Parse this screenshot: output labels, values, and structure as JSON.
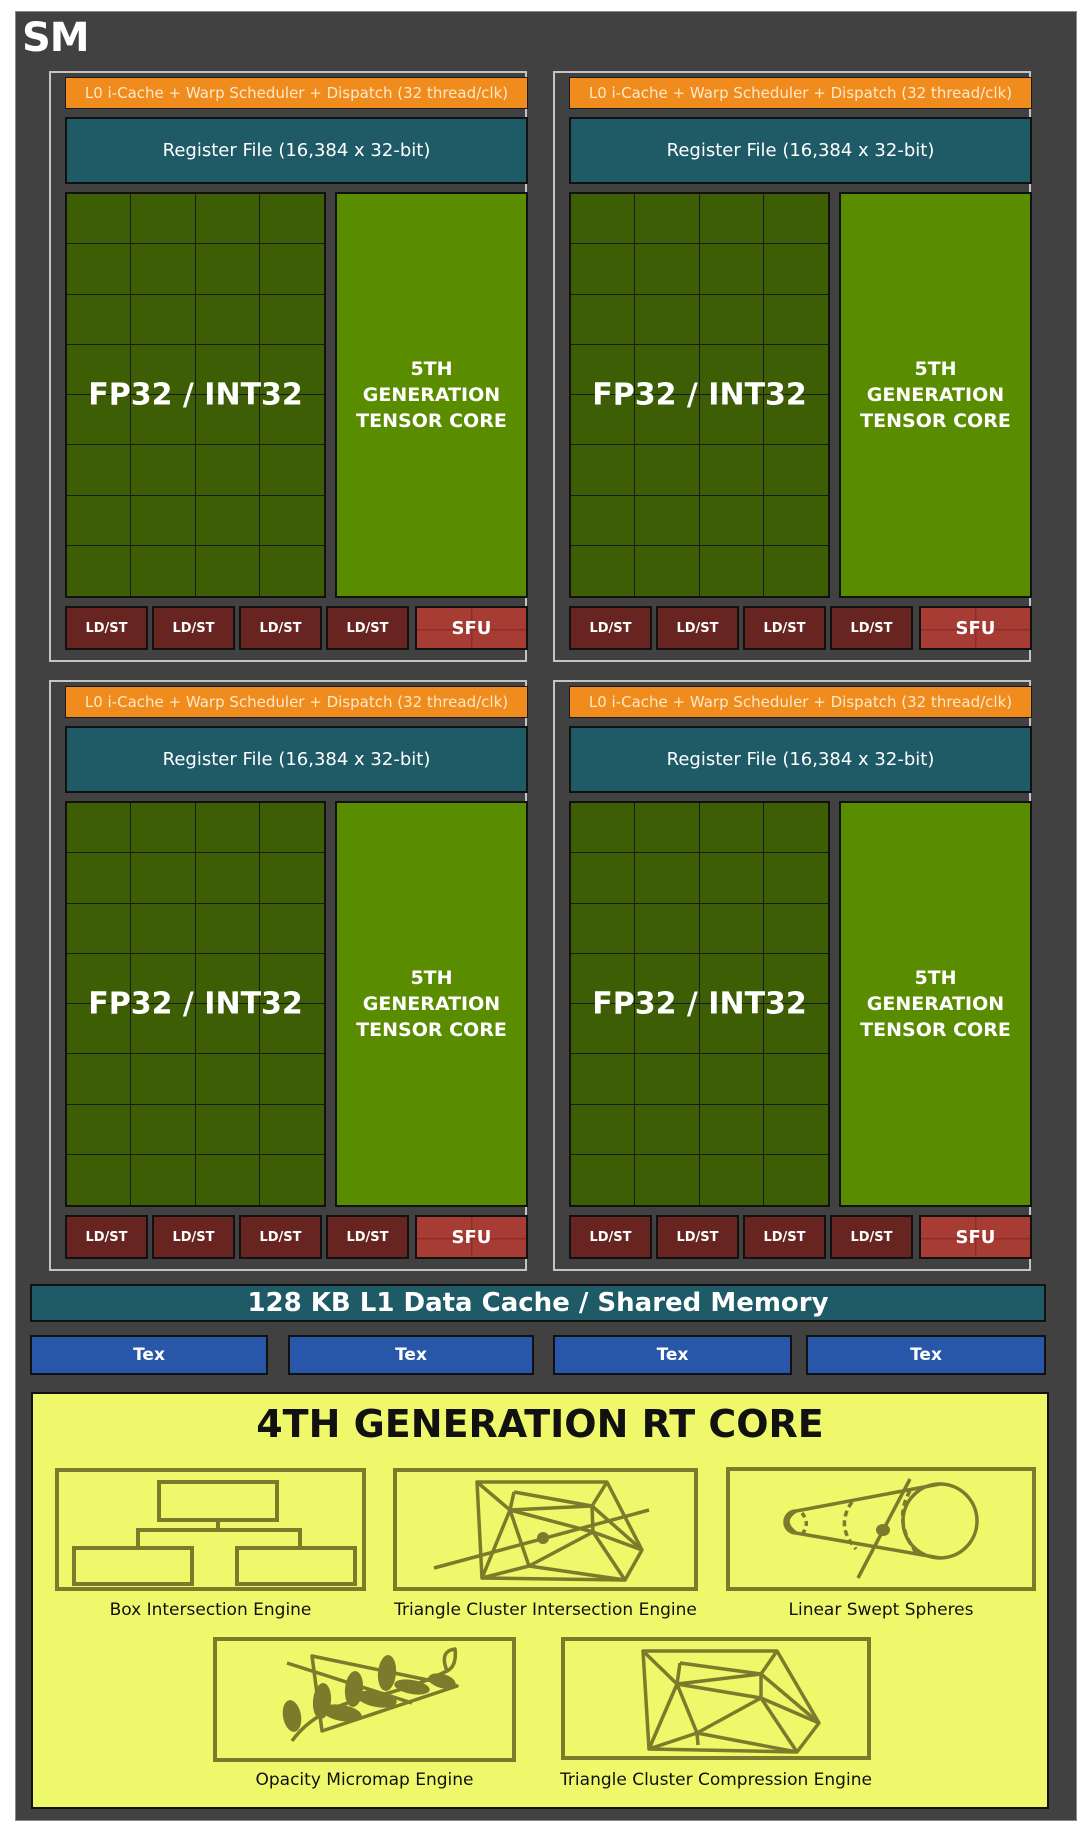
{
  "sm": {
    "label": "SM"
  },
  "quadrants": [
    {
      "id": "q1",
      "scheduler": "L0 i-Cache + Warp Scheduler + Dispatch (32 thread/clk)",
      "register_file": "Register File (16,384 x 32-bit)",
      "cores_label": "FP32 / INT32",
      "tensor_line1": "5TH",
      "tensor_line2": "GENERATION",
      "tensor_line3": "TENSOR CORE",
      "units": [
        "LD/ST",
        "LD/ST",
        "LD/ST",
        "LD/ST"
      ],
      "sfu": "SFU"
    },
    {
      "id": "q2",
      "scheduler": "L0 i-Cache + Warp Scheduler + Dispatch (32 thread/clk)",
      "register_file": "Register File (16,384 x 32-bit)",
      "cores_label": "FP32 / INT32",
      "tensor_line1": "5TH",
      "tensor_line2": "GENERATION",
      "tensor_line3": "TENSOR CORE",
      "units": [
        "LD/ST",
        "LD/ST",
        "LD/ST",
        "LD/ST"
      ],
      "sfu": "SFU"
    },
    {
      "id": "q3",
      "scheduler": "L0 i-Cache + Warp Scheduler + Dispatch (32 thread/clk)",
      "register_file": "Register File (16,384 x 32-bit)",
      "cores_label": "FP32 / INT32",
      "tensor_line1": "5TH",
      "tensor_line2": "GENERATION",
      "tensor_line3": "TENSOR CORE",
      "units": [
        "LD/ST",
        "LD/ST",
        "LD/ST",
        "LD/ST"
      ],
      "sfu": "SFU"
    },
    {
      "id": "q4",
      "scheduler": "L0 i-Cache + Warp Scheduler + Dispatch (32 thread/clk)",
      "register_file": "Register File (16,384 x 32-bit)",
      "cores_label": "FP32 / INT32",
      "tensor_line1": "5TH",
      "tensor_line2": "GENERATION",
      "tensor_line3": "TENSOR CORE",
      "units": [
        "LD/ST",
        "LD/ST",
        "LD/ST",
        "LD/ST"
      ],
      "sfu": "SFU"
    }
  ],
  "l1_cache": {
    "label": "128 KB L1 Data Cache / Shared Memory"
  },
  "tex_units": [
    "Tex",
    "Tex",
    "Tex",
    "Tex"
  ],
  "rt_core": {
    "title": "4TH GENERATION RT CORE",
    "engines": [
      {
        "label": "Box Intersection Engine",
        "icon": "box-hierarchy-icon"
      },
      {
        "label": "Triangle Cluster Intersection Engine",
        "icon": "triangle-mesh-ray-icon"
      },
      {
        "label": "Linear Swept Spheres",
        "icon": "swept-sphere-icon"
      },
      {
        "label": "Opacity Micromap Engine",
        "icon": "leaf-triangle-icon"
      },
      {
        "label": "Triangle Cluster Compression Engine",
        "icon": "triangle-mesh-icon"
      }
    ]
  },
  "colors": {
    "sm_background": "#414141",
    "scheduler": "#f08c1e",
    "register_file": "#1f5a67",
    "fp32_int32": "#3e5e05",
    "tensor_core": "#5a8c00",
    "ld_st": "#682420",
    "sfu": "#a63c33",
    "tex": "#2856a8",
    "rt_core": "#eef86a",
    "rt_icon": "#7d7a2c"
  }
}
